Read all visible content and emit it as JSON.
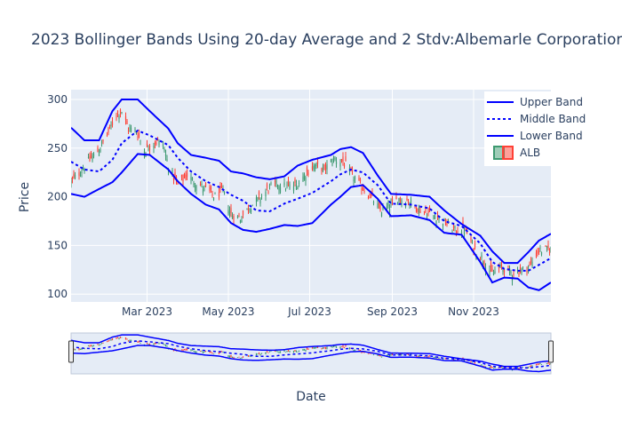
{
  "chart_data": {
    "type": "candlestick",
    "title": "2023 Bollinger Bands Using 20-day Average and 2 Stdv:Albemarle Corporation",
    "xlabel": "Date",
    "ylabel": "Price",
    "x_range": [
      "2023-01-03",
      "2023-12-29"
    ],
    "y_range": [
      92,
      310
    ],
    "y_ticks": [
      100,
      150,
      200,
      250,
      300
    ],
    "x_ticks": [
      {
        "date": "2023-03-01",
        "label": "Mar 2023"
      },
      {
        "date": "2023-05-01",
        "label": "May 2023"
      },
      {
        "date": "2023-07-01",
        "label": "Jul 2023"
      },
      {
        "date": "2023-09-01",
        "label": "Sep 2023"
      },
      {
        "date": "2023-11-01",
        "label": "Nov 2023"
      }
    ],
    "colors": {
      "band": "#0000ff",
      "increasing": "#3d9970",
      "decreasing": "#ff4136",
      "plot_bg": "#e5ecf6",
      "grid": "#ffffff",
      "text": "#2a3f5f"
    },
    "legend": {
      "position": "top-right",
      "items": [
        {
          "label": "Upper Band",
          "style": "solid"
        },
        {
          "label": "Middle Band",
          "style": "dotted"
        },
        {
          "label": "Lower Band",
          "style": "solid"
        },
        {
          "label": "ALB",
          "style": "candlestick"
        }
      ]
    },
    "has_range_slider": true,
    "band_anchors": {
      "upper": [
        [
          "2023-01-03",
          271
        ],
        [
          "2023-01-13",
          258
        ],
        [
          "2023-01-24",
          258
        ],
        [
          "2023-02-03",
          288
        ],
        [
          "2023-02-10",
          300
        ],
        [
          "2023-02-22",
          300
        ],
        [
          "2023-03-03",
          288
        ],
        [
          "2023-03-17",
          270
        ],
        [
          "2023-03-24",
          255
        ],
        [
          "2023-04-03",
          243
        ],
        [
          "2023-04-14",
          240
        ],
        [
          "2023-04-24",
          237
        ],
        [
          "2023-05-03",
          226
        ],
        [
          "2023-05-12",
          224
        ],
        [
          "2023-05-22",
          220
        ],
        [
          "2023-06-01",
          218
        ],
        [
          "2023-06-12",
          221
        ],
        [
          "2023-06-22",
          232
        ],
        [
          "2023-07-03",
          238
        ],
        [
          "2023-07-17",
          243
        ],
        [
          "2023-07-24",
          249
        ],
        [
          "2023-08-01",
          251
        ],
        [
          "2023-08-10",
          245
        ],
        [
          "2023-08-21",
          222
        ],
        [
          "2023-08-31",
          203
        ],
        [
          "2023-09-15",
          202
        ],
        [
          "2023-09-29",
          200
        ],
        [
          "2023-10-10",
          186
        ],
        [
          "2023-10-23",
          172
        ],
        [
          "2023-11-06",
          160
        ],
        [
          "2023-11-15",
          144
        ],
        [
          "2023-11-24",
          132
        ],
        [
          "2023-12-04",
          132
        ],
        [
          "2023-12-12",
          143
        ],
        [
          "2023-12-20",
          155
        ],
        [
          "2023-12-29",
          162
        ]
      ],
      "middle": [
        [
          "2023-01-03",
          236
        ],
        [
          "2023-01-13",
          228
        ],
        [
          "2023-01-24",
          226
        ],
        [
          "2023-02-03",
          238
        ],
        [
          "2023-02-10",
          255
        ],
        [
          "2023-02-22",
          268
        ],
        [
          "2023-03-03",
          263
        ],
        [
          "2023-03-17",
          253
        ],
        [
          "2023-03-24",
          240
        ],
        [
          "2023-04-03",
          226
        ],
        [
          "2023-04-14",
          216
        ],
        [
          "2023-04-24",
          210
        ],
        [
          "2023-05-03",
          202
        ],
        [
          "2023-05-12",
          196
        ],
        [
          "2023-05-22",
          186
        ],
        [
          "2023-06-01",
          185
        ],
        [
          "2023-06-12",
          193
        ],
        [
          "2023-06-22",
          198
        ],
        [
          "2023-07-03",
          204
        ],
        [
          "2023-07-17",
          216
        ],
        [
          "2023-07-24",
          223
        ],
        [
          "2023-08-01",
          228
        ],
        [
          "2023-08-10",
          225
        ],
        [
          "2023-08-21",
          212
        ],
        [
          "2023-08-31",
          193
        ],
        [
          "2023-09-15",
          192
        ],
        [
          "2023-09-29",
          188
        ],
        [
          "2023-10-10",
          175
        ],
        [
          "2023-10-23",
          170
        ],
        [
          "2023-11-06",
          152
        ],
        [
          "2023-11-15",
          133
        ],
        [
          "2023-11-24",
          126
        ],
        [
          "2023-12-04",
          124
        ],
        [
          "2023-12-12",
          124
        ],
        [
          "2023-12-20",
          130
        ],
        [
          "2023-12-29",
          137
        ]
      ],
      "lower": [
        [
          "2023-01-03",
          203
        ],
        [
          "2023-01-13",
          200
        ],
        [
          "2023-01-24",
          208
        ],
        [
          "2023-02-03",
          215
        ],
        [
          "2023-02-10",
          225
        ],
        [
          "2023-02-22",
          244
        ],
        [
          "2023-03-03",
          243
        ],
        [
          "2023-03-17",
          228
        ],
        [
          "2023-03-24",
          216
        ],
        [
          "2023-04-03",
          203
        ],
        [
          "2023-04-14",
          192
        ],
        [
          "2023-04-24",
          187
        ],
        [
          "2023-05-03",
          173
        ],
        [
          "2023-05-12",
          166
        ],
        [
          "2023-05-22",
          164
        ],
        [
          "2023-06-01",
          167
        ],
        [
          "2023-06-12",
          171
        ],
        [
          "2023-06-22",
          170
        ],
        [
          "2023-07-03",
          173
        ],
        [
          "2023-07-17",
          192
        ],
        [
          "2023-07-24",
          200
        ],
        [
          "2023-08-01",
          210
        ],
        [
          "2023-08-10",
          212
        ],
        [
          "2023-08-21",
          198
        ],
        [
          "2023-08-31",
          180
        ],
        [
          "2023-09-15",
          181
        ],
        [
          "2023-09-29",
          176
        ],
        [
          "2023-10-10",
          163
        ],
        [
          "2023-10-23",
          161
        ],
        [
          "2023-11-06",
          133
        ],
        [
          "2023-11-15",
          112
        ],
        [
          "2023-11-24",
          117
        ],
        [
          "2023-12-04",
          116
        ],
        [
          "2023-12-12",
          107
        ],
        [
          "2023-12-20",
          104
        ],
        [
          "2023-12-29",
          112
        ]
      ]
    },
    "close_anchors": [
      [
        "2023-01-03",
        215
      ],
      [
        "2023-01-10",
        226
      ],
      [
        "2023-01-17",
        238
      ],
      [
        "2023-01-24",
        248
      ],
      [
        "2023-01-31",
        266
      ],
      [
        "2023-02-06",
        285
      ],
      [
        "2023-02-10",
        288
      ],
      [
        "2023-02-15",
        270
      ],
      [
        "2023-02-21",
        268
      ],
      [
        "2023-02-27",
        248
      ],
      [
        "2023-03-03",
        252
      ],
      [
        "2023-03-08",
        257
      ],
      [
        "2023-03-13",
        254
      ],
      [
        "2023-03-17",
        232
      ],
      [
        "2023-03-24",
        212
      ],
      [
        "2023-03-31",
        222
      ],
      [
        "2023-04-06",
        215
      ],
      [
        "2023-04-14",
        208
      ],
      [
        "2023-04-21",
        200
      ],
      [
        "2023-04-27",
        206
      ],
      [
        "2023-05-03",
        182
      ],
      [
        "2023-05-10",
        178
      ],
      [
        "2023-05-17",
        190
      ],
      [
        "2023-05-24",
        198
      ],
      [
        "2023-05-31",
        208
      ],
      [
        "2023-06-07",
        214
      ],
      [
        "2023-06-14",
        210
      ],
      [
        "2023-06-21",
        212
      ],
      [
        "2023-06-28",
        224
      ],
      [
        "2023-07-05",
        232
      ],
      [
        "2023-07-12",
        228
      ],
      [
        "2023-07-19",
        239
      ],
      [
        "2023-07-26",
        236
      ],
      [
        "2023-08-02",
        222
      ],
      [
        "2023-08-09",
        210
      ],
      [
        "2023-08-16",
        200
      ],
      [
        "2023-08-23",
        186
      ],
      [
        "2023-08-30",
        190
      ],
      [
        "2023-09-06",
        198
      ],
      [
        "2023-09-13",
        196
      ],
      [
        "2023-09-20",
        188
      ],
      [
        "2023-09-27",
        183
      ],
      [
        "2023-10-04",
        180
      ],
      [
        "2023-10-11",
        173
      ],
      [
        "2023-10-18",
        165
      ],
      [
        "2023-10-25",
        168
      ],
      [
        "2023-11-01",
        148
      ],
      [
        "2023-11-08",
        136
      ],
      [
        "2023-11-15",
        121
      ],
      [
        "2023-11-22",
        128
      ],
      [
        "2023-11-29",
        122
      ],
      [
        "2023-12-06",
        124
      ],
      [
        "2023-12-13",
        129
      ],
      [
        "2023-12-20",
        145
      ],
      [
        "2023-12-29",
        146
      ]
    ]
  }
}
